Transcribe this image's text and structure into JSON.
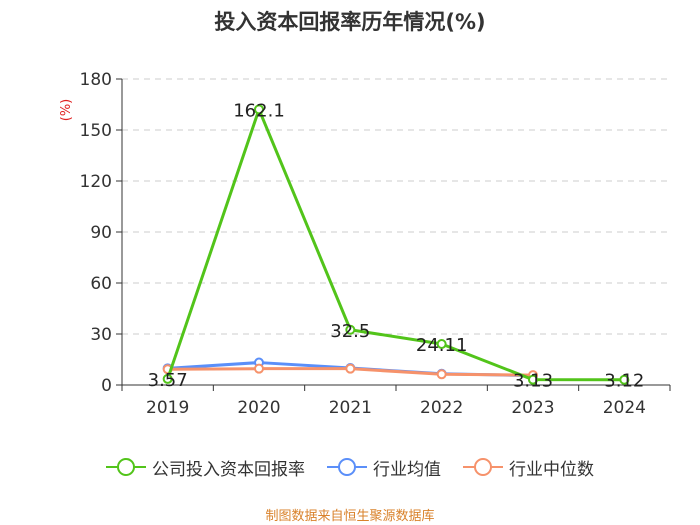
{
  "chart_data": {
    "type": "line",
    "title": "投入资本回报率历年情况(%)",
    "ylabel": "(%)",
    "xlabel": "",
    "categories": [
      "2019",
      "2020",
      "2021",
      "2022",
      "2023",
      "2024"
    ],
    "ylim": [
      0,
      180
    ],
    "yticks": [
      0,
      30,
      60,
      90,
      120,
      150,
      180
    ],
    "grid": true,
    "legend_position": "bottom",
    "series": [
      {
        "name": "公司投入资本回报率",
        "color": "#52c41a",
        "values": [
          3.57,
          162.1,
          32.5,
          24.11,
          3.13,
          3.12
        ],
        "labels": [
          "3.57",
          "162.1",
          "32.5",
          "24.11",
          "3.13",
          "3.12"
        ]
      },
      {
        "name": "行业均值",
        "color": "#5b8ff9",
        "values": [
          9.8,
          13.2,
          10.0,
          6.6,
          5.5,
          null
        ]
      },
      {
        "name": "行业中位数",
        "color": "#f6926b",
        "values": [
          9.3,
          9.6,
          9.6,
          6.3,
          5.8,
          null
        ]
      }
    ]
  },
  "source_text": "制图数据来自恒生聚源数据库"
}
